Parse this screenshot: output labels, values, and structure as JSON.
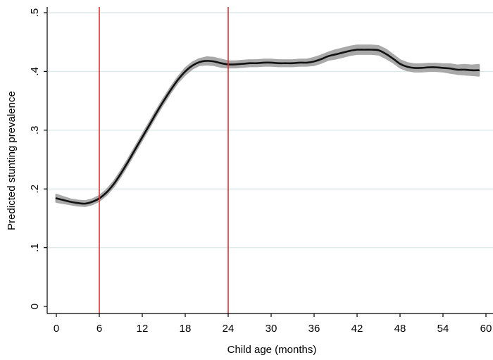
{
  "chart_data": {
    "type": "line",
    "title": "",
    "xlabel": "Child age (months)",
    "ylabel": "Predicted stunting prevalence",
    "xlim": [
      -1,
      60
    ],
    "ylim": [
      0,
      0.5
    ],
    "xticks": [
      0,
      6,
      12,
      18,
      24,
      30,
      36,
      42,
      48,
      54,
      60
    ],
    "xtick_labels": [
      "0",
      "6",
      "12",
      "18",
      "24",
      "30",
      "36",
      "42",
      "48",
      "54",
      "60"
    ],
    "yticks": [
      0,
      0.1,
      0.2,
      0.3,
      0.4,
      0.5
    ],
    "ytick_labels": [
      "0",
      ".1",
      ".2",
      ".3",
      ".4",
      ".5"
    ],
    "grid": "horizontal",
    "vlines": [
      6,
      24
    ],
    "colors": {
      "line": "#111111",
      "ci_band": "#a9a9a9",
      "vline": "#dc3232",
      "grid": "#dde8e8",
      "axis": "#000000"
    },
    "series": [
      {
        "x": [
          0,
          1,
          2,
          3,
          4,
          5,
          6,
          7,
          8,
          9,
          10,
          11,
          12,
          13,
          14,
          15,
          16,
          17,
          18,
          19,
          20,
          21,
          22,
          23,
          24,
          25,
          26,
          27,
          28,
          29,
          30,
          31,
          32,
          33,
          34,
          35,
          36,
          37,
          38,
          39,
          40,
          41,
          42,
          43,
          44,
          45,
          46,
          47,
          48,
          49,
          50,
          51,
          52,
          53,
          54,
          55,
          56,
          57,
          58,
          59
        ],
        "values": [
          0.184,
          0.181,
          0.178,
          0.176,
          0.175,
          0.178,
          0.184,
          0.194,
          0.208,
          0.226,
          0.246,
          0.267,
          0.288,
          0.309,
          0.33,
          0.35,
          0.369,
          0.386,
          0.4,
          0.41,
          0.416,
          0.418,
          0.417,
          0.414,
          0.412,
          0.412,
          0.413,
          0.414,
          0.414,
          0.415,
          0.415,
          0.414,
          0.414,
          0.414,
          0.415,
          0.415,
          0.417,
          0.421,
          0.426,
          0.429,
          0.432,
          0.435,
          0.437,
          0.437,
          0.437,
          0.436,
          0.43,
          0.422,
          0.413,
          0.408,
          0.406,
          0.406,
          0.407,
          0.407,
          0.406,
          0.405,
          0.403,
          0.403,
          0.402,
          0.402
        ],
        "ci_halfwidth": [
          0.006,
          0.005,
          0.004,
          0.004,
          0.004,
          0.004,
          0.004,
          0.004,
          0.004,
          0.004,
          0.004,
          0.004,
          0.004,
          0.004,
          0.004,
          0.004,
          0.004,
          0.004,
          0.005,
          0.005,
          0.005,
          0.006,
          0.006,
          0.006,
          0.005,
          0.005,
          0.005,
          0.005,
          0.005,
          0.005,
          0.005,
          0.005,
          0.005,
          0.005,
          0.005,
          0.005,
          0.006,
          0.006,
          0.006,
          0.007,
          0.007,
          0.007,
          0.007,
          0.007,
          0.007,
          0.007,
          0.007,
          0.006,
          0.006,
          0.006,
          0.006,
          0.006,
          0.006,
          0.006,
          0.006,
          0.007,
          0.007,
          0.008,
          0.008,
          0.009
        ]
      }
    ]
  }
}
